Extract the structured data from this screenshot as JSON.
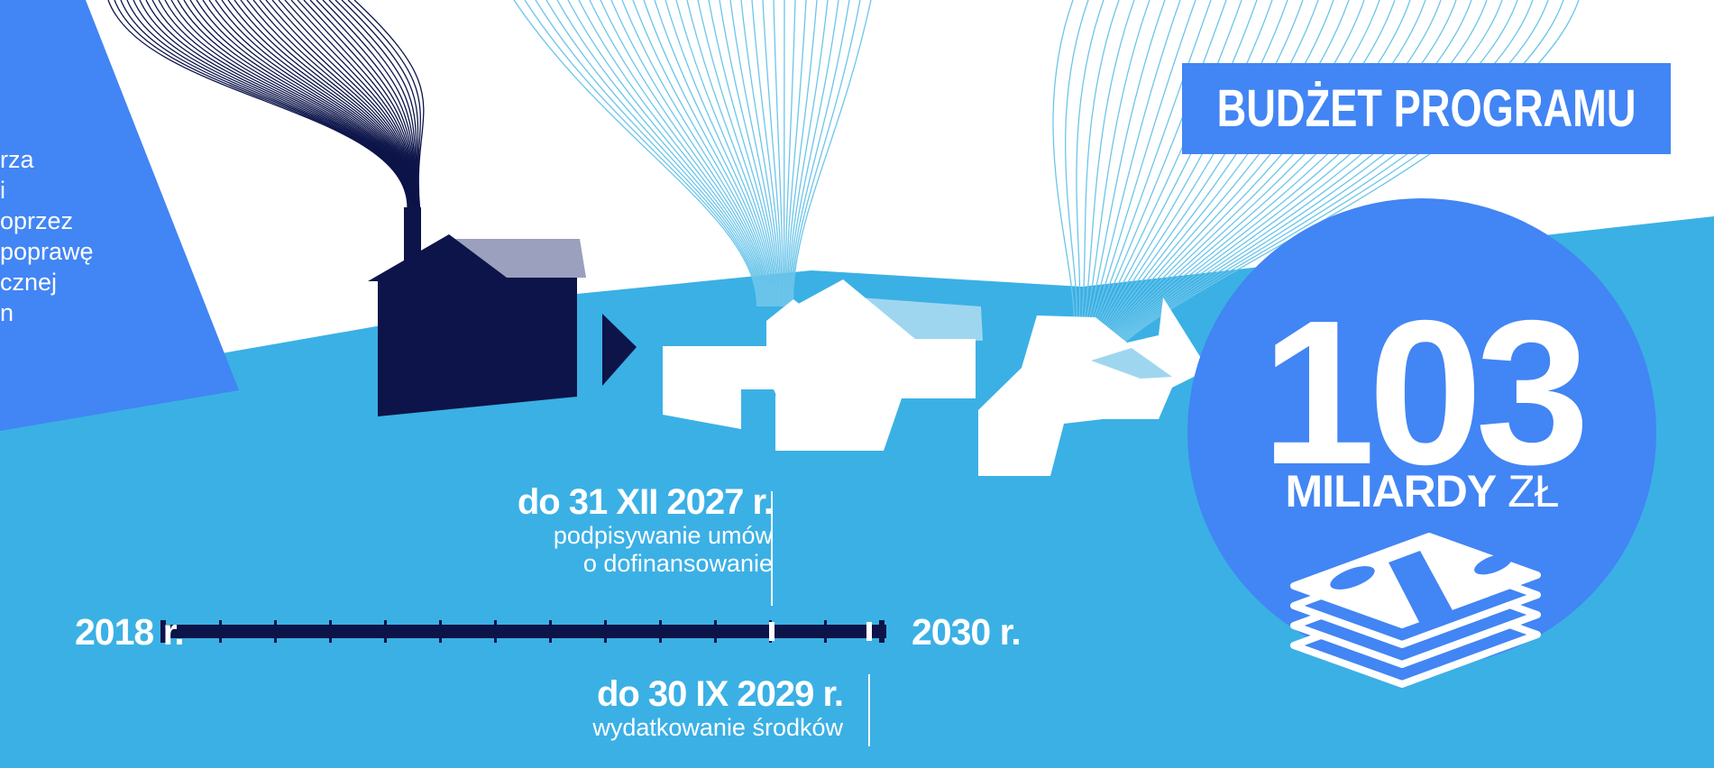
{
  "intro": {
    "lines": [
      "rza",
      "i",
      "oprzez",
      "poprawę",
      "cznej",
      "n"
    ]
  },
  "budget": {
    "banner": "BUDŻET PROGRAMU",
    "amount": "103",
    "unit_bold": "MILIARDY",
    "unit_thin": "ZŁ",
    "icon": "money-stack-icon"
  },
  "timeline": {
    "start": "2018 r.",
    "end": "2030 r.",
    "events": [
      {
        "date": "do 31 XII 2027 r.",
        "desc": [
          "podpisywanie umów",
          "o dofinansowanie"
        ]
      },
      {
        "date": "do 30 IX 2029 r.",
        "desc": [
          "wydatkowanie środków"
        ]
      }
    ]
  },
  "colors": {
    "ground": "#3bb0e5",
    "accent_blue": "#4285f4",
    "navy": "#0c1449",
    "light_blue": "#9fd6ef",
    "white": "#ffffff"
  }
}
